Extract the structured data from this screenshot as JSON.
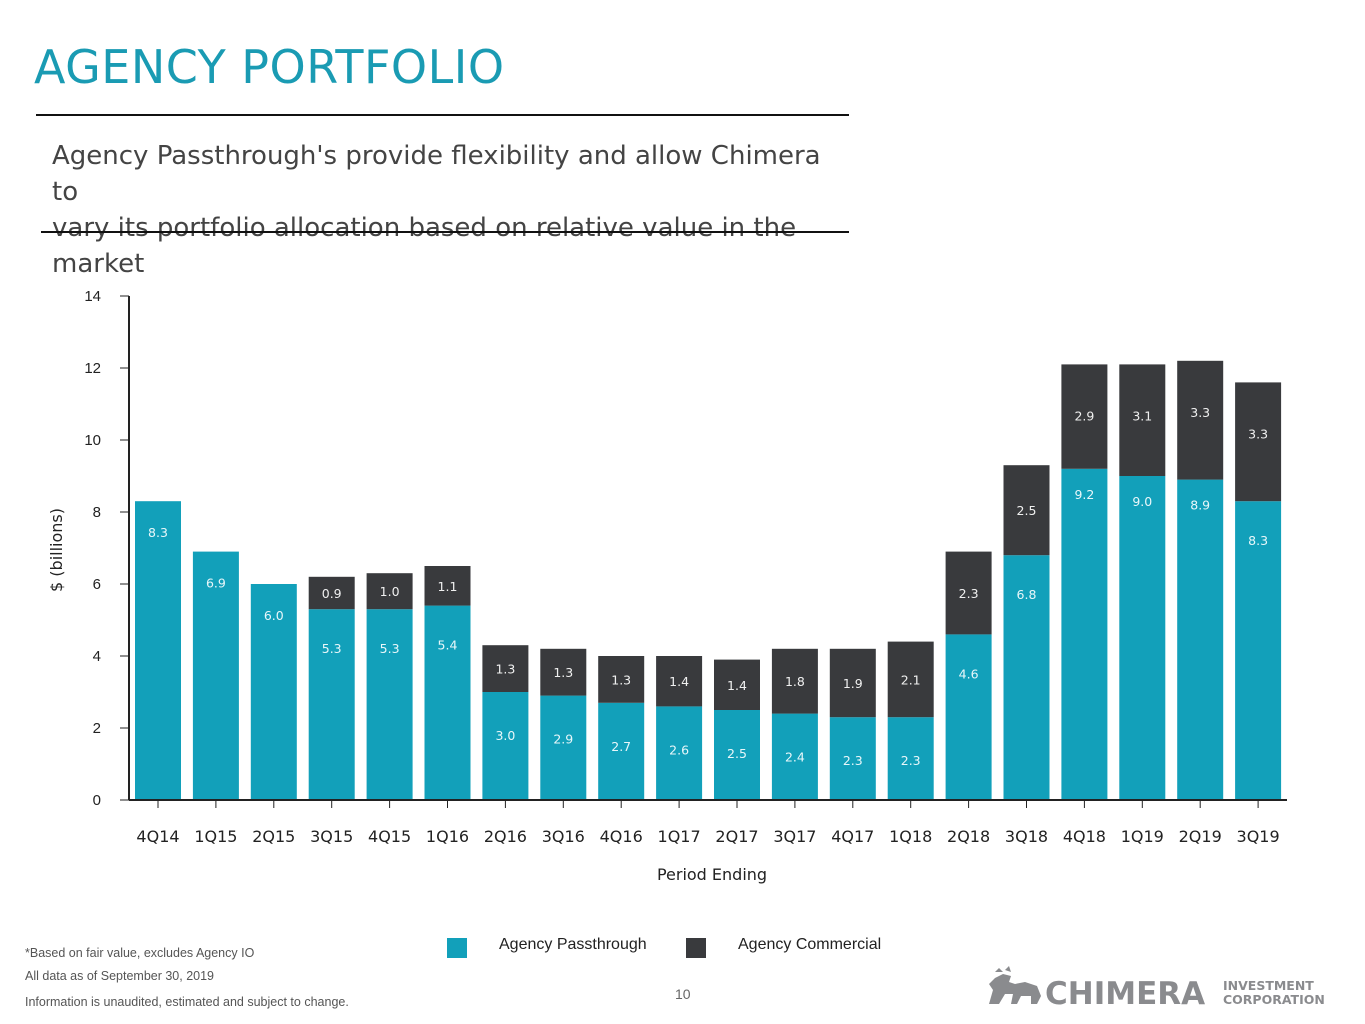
{
  "title": "AGENCY PORTFOLIO",
  "subtitle": {
    "line1": "Agency Passthrough's provide flexibility and allow Chimera to",
    "line2": "vary its portfolio allocation based on relative value in the market"
  },
  "colors": {
    "accent": "#1a9bb3",
    "passthrough": "#12a0ba",
    "commercial": "#393a3d"
  },
  "chart_data": {
    "type": "bar",
    "stacked": true,
    "title": "",
    "xlabel": "Period Ending",
    "ylabel": "$ (billions)",
    "ylim": [
      0,
      14
    ],
    "yticks": [
      0,
      2,
      4,
      6,
      8,
      10,
      12,
      14
    ],
    "categories": [
      "4Q14",
      "1Q15",
      "2Q15",
      "3Q15",
      "4Q15",
      "1Q16",
      "2Q16",
      "3Q16",
      "4Q16",
      "1Q17",
      "2Q17",
      "3Q17",
      "4Q17",
      "1Q18",
      "2Q18",
      "3Q18",
      "4Q18",
      "1Q19",
      "2Q19",
      "3Q19"
    ],
    "series": [
      {
        "name": "Agency Passthrough",
        "color": "#12a0ba",
        "values": [
          8.3,
          6.9,
          6.0,
          5.3,
          5.3,
          5.4,
          3.0,
          2.9,
          2.7,
          2.6,
          2.5,
          2.4,
          2.3,
          2.3,
          4.6,
          6.8,
          9.2,
          9.0,
          8.9,
          8.3
        ],
        "labels": [
          "8.3",
          "6.9",
          "6.0",
          "5.3",
          "5.3",
          "5.4",
          "3.0",
          "2.9",
          "2.7",
          "2.6",
          "2.5",
          "2.4",
          "2.3",
          "2.3",
          "4.6",
          "6.8",
          "9.2",
          "9.0",
          "8.9",
          "8.3"
        ]
      },
      {
        "name": "Agency Commercial",
        "color": "#393a3d",
        "values": [
          null,
          null,
          null,
          0.9,
          1.0,
          1.1,
          1.3,
          1.3,
          1.3,
          1.4,
          1.4,
          1.8,
          1.9,
          2.1,
          2.3,
          2.5,
          2.9,
          3.1,
          3.3,
          3.3
        ],
        "labels": [
          null,
          null,
          null,
          "0.9",
          "1.0",
          "1.1",
          "1.3",
          "1.3",
          "1.3",
          "1.4",
          "1.4",
          "1.8",
          "1.9",
          "2.1",
          "2.3",
          "2.5",
          "2.9",
          "3.1",
          "3.3",
          "3.3"
        ]
      }
    ],
    "legend": {
      "position": "bottom",
      "entries": [
        "Agency Passthrough",
        "Agency Commercial"
      ]
    }
  },
  "footer": {
    "note1": "*Based on fair value, excludes Agency IO",
    "note2": "All data as of September 30, 2019",
    "note3": "Information is unaudited, estimated and subject to change.",
    "page_number": "10",
    "logo_main": "CHIMERA",
    "logo_sub1": "INVESTMENT",
    "logo_sub2": "CORPORATION"
  }
}
